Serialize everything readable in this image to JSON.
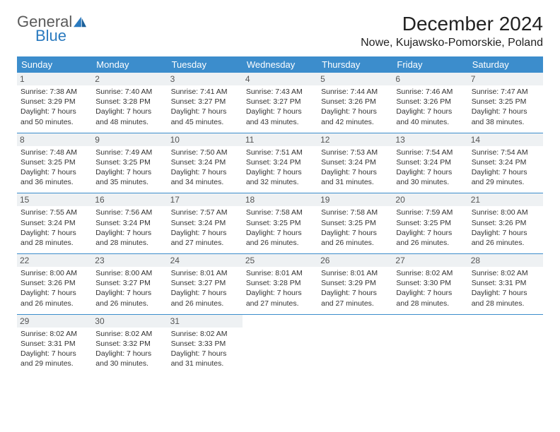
{
  "logo": {
    "text1": "General",
    "text2": "Blue"
  },
  "title": "December 2024",
  "location": "Nowe, Kujawsko-Pomorskie, Poland",
  "colors": {
    "header_bg": "#3c8dcc",
    "header_text": "#ffffff",
    "daynum_bg": "#eef1f3",
    "row_border": "#3c8dcc",
    "logo_blue": "#2a7abf",
    "logo_gray": "#5a5a5a"
  },
  "day_headers": [
    "Sunday",
    "Monday",
    "Tuesday",
    "Wednesday",
    "Thursday",
    "Friday",
    "Saturday"
  ],
  "weeks": [
    [
      {
        "n": "1",
        "sunrise": "7:38 AM",
        "sunset": "3:29 PM",
        "dl": "7 hours and 50 minutes."
      },
      {
        "n": "2",
        "sunrise": "7:40 AM",
        "sunset": "3:28 PM",
        "dl": "7 hours and 48 minutes."
      },
      {
        "n": "3",
        "sunrise": "7:41 AM",
        "sunset": "3:27 PM",
        "dl": "7 hours and 45 minutes."
      },
      {
        "n": "4",
        "sunrise": "7:43 AM",
        "sunset": "3:27 PM",
        "dl": "7 hours and 43 minutes."
      },
      {
        "n": "5",
        "sunrise": "7:44 AM",
        "sunset": "3:26 PM",
        "dl": "7 hours and 42 minutes."
      },
      {
        "n": "6",
        "sunrise": "7:46 AM",
        "sunset": "3:26 PM",
        "dl": "7 hours and 40 minutes."
      },
      {
        "n": "7",
        "sunrise": "7:47 AM",
        "sunset": "3:25 PM",
        "dl": "7 hours and 38 minutes."
      }
    ],
    [
      {
        "n": "8",
        "sunrise": "7:48 AM",
        "sunset": "3:25 PM",
        "dl": "7 hours and 36 minutes."
      },
      {
        "n": "9",
        "sunrise": "7:49 AM",
        "sunset": "3:25 PM",
        "dl": "7 hours and 35 minutes."
      },
      {
        "n": "10",
        "sunrise": "7:50 AM",
        "sunset": "3:24 PM",
        "dl": "7 hours and 34 minutes."
      },
      {
        "n": "11",
        "sunrise": "7:51 AM",
        "sunset": "3:24 PM",
        "dl": "7 hours and 32 minutes."
      },
      {
        "n": "12",
        "sunrise": "7:53 AM",
        "sunset": "3:24 PM",
        "dl": "7 hours and 31 minutes."
      },
      {
        "n": "13",
        "sunrise": "7:54 AM",
        "sunset": "3:24 PM",
        "dl": "7 hours and 30 minutes."
      },
      {
        "n": "14",
        "sunrise": "7:54 AM",
        "sunset": "3:24 PM",
        "dl": "7 hours and 29 minutes."
      }
    ],
    [
      {
        "n": "15",
        "sunrise": "7:55 AM",
        "sunset": "3:24 PM",
        "dl": "7 hours and 28 minutes."
      },
      {
        "n": "16",
        "sunrise": "7:56 AM",
        "sunset": "3:24 PM",
        "dl": "7 hours and 28 minutes."
      },
      {
        "n": "17",
        "sunrise": "7:57 AM",
        "sunset": "3:24 PM",
        "dl": "7 hours and 27 minutes."
      },
      {
        "n": "18",
        "sunrise": "7:58 AM",
        "sunset": "3:25 PM",
        "dl": "7 hours and 26 minutes."
      },
      {
        "n": "19",
        "sunrise": "7:58 AM",
        "sunset": "3:25 PM",
        "dl": "7 hours and 26 minutes."
      },
      {
        "n": "20",
        "sunrise": "7:59 AM",
        "sunset": "3:25 PM",
        "dl": "7 hours and 26 minutes."
      },
      {
        "n": "21",
        "sunrise": "8:00 AM",
        "sunset": "3:26 PM",
        "dl": "7 hours and 26 minutes."
      }
    ],
    [
      {
        "n": "22",
        "sunrise": "8:00 AM",
        "sunset": "3:26 PM",
        "dl": "7 hours and 26 minutes."
      },
      {
        "n": "23",
        "sunrise": "8:00 AM",
        "sunset": "3:27 PM",
        "dl": "7 hours and 26 minutes."
      },
      {
        "n": "24",
        "sunrise": "8:01 AM",
        "sunset": "3:27 PM",
        "dl": "7 hours and 26 minutes."
      },
      {
        "n": "25",
        "sunrise": "8:01 AM",
        "sunset": "3:28 PM",
        "dl": "7 hours and 27 minutes."
      },
      {
        "n": "26",
        "sunrise": "8:01 AM",
        "sunset": "3:29 PM",
        "dl": "7 hours and 27 minutes."
      },
      {
        "n": "27",
        "sunrise": "8:02 AM",
        "sunset": "3:30 PM",
        "dl": "7 hours and 28 minutes."
      },
      {
        "n": "28",
        "sunrise": "8:02 AM",
        "sunset": "3:31 PM",
        "dl": "7 hours and 28 minutes."
      }
    ],
    [
      {
        "n": "29",
        "sunrise": "8:02 AM",
        "sunset": "3:31 PM",
        "dl": "7 hours and 29 minutes."
      },
      {
        "n": "30",
        "sunrise": "8:02 AM",
        "sunset": "3:32 PM",
        "dl": "7 hours and 30 minutes."
      },
      {
        "n": "31",
        "sunrise": "8:02 AM",
        "sunset": "3:33 PM",
        "dl": "7 hours and 31 minutes."
      },
      null,
      null,
      null,
      null
    ]
  ],
  "labels": {
    "sunrise": "Sunrise:",
    "sunset": "Sunset:",
    "daylight": "Daylight:"
  }
}
